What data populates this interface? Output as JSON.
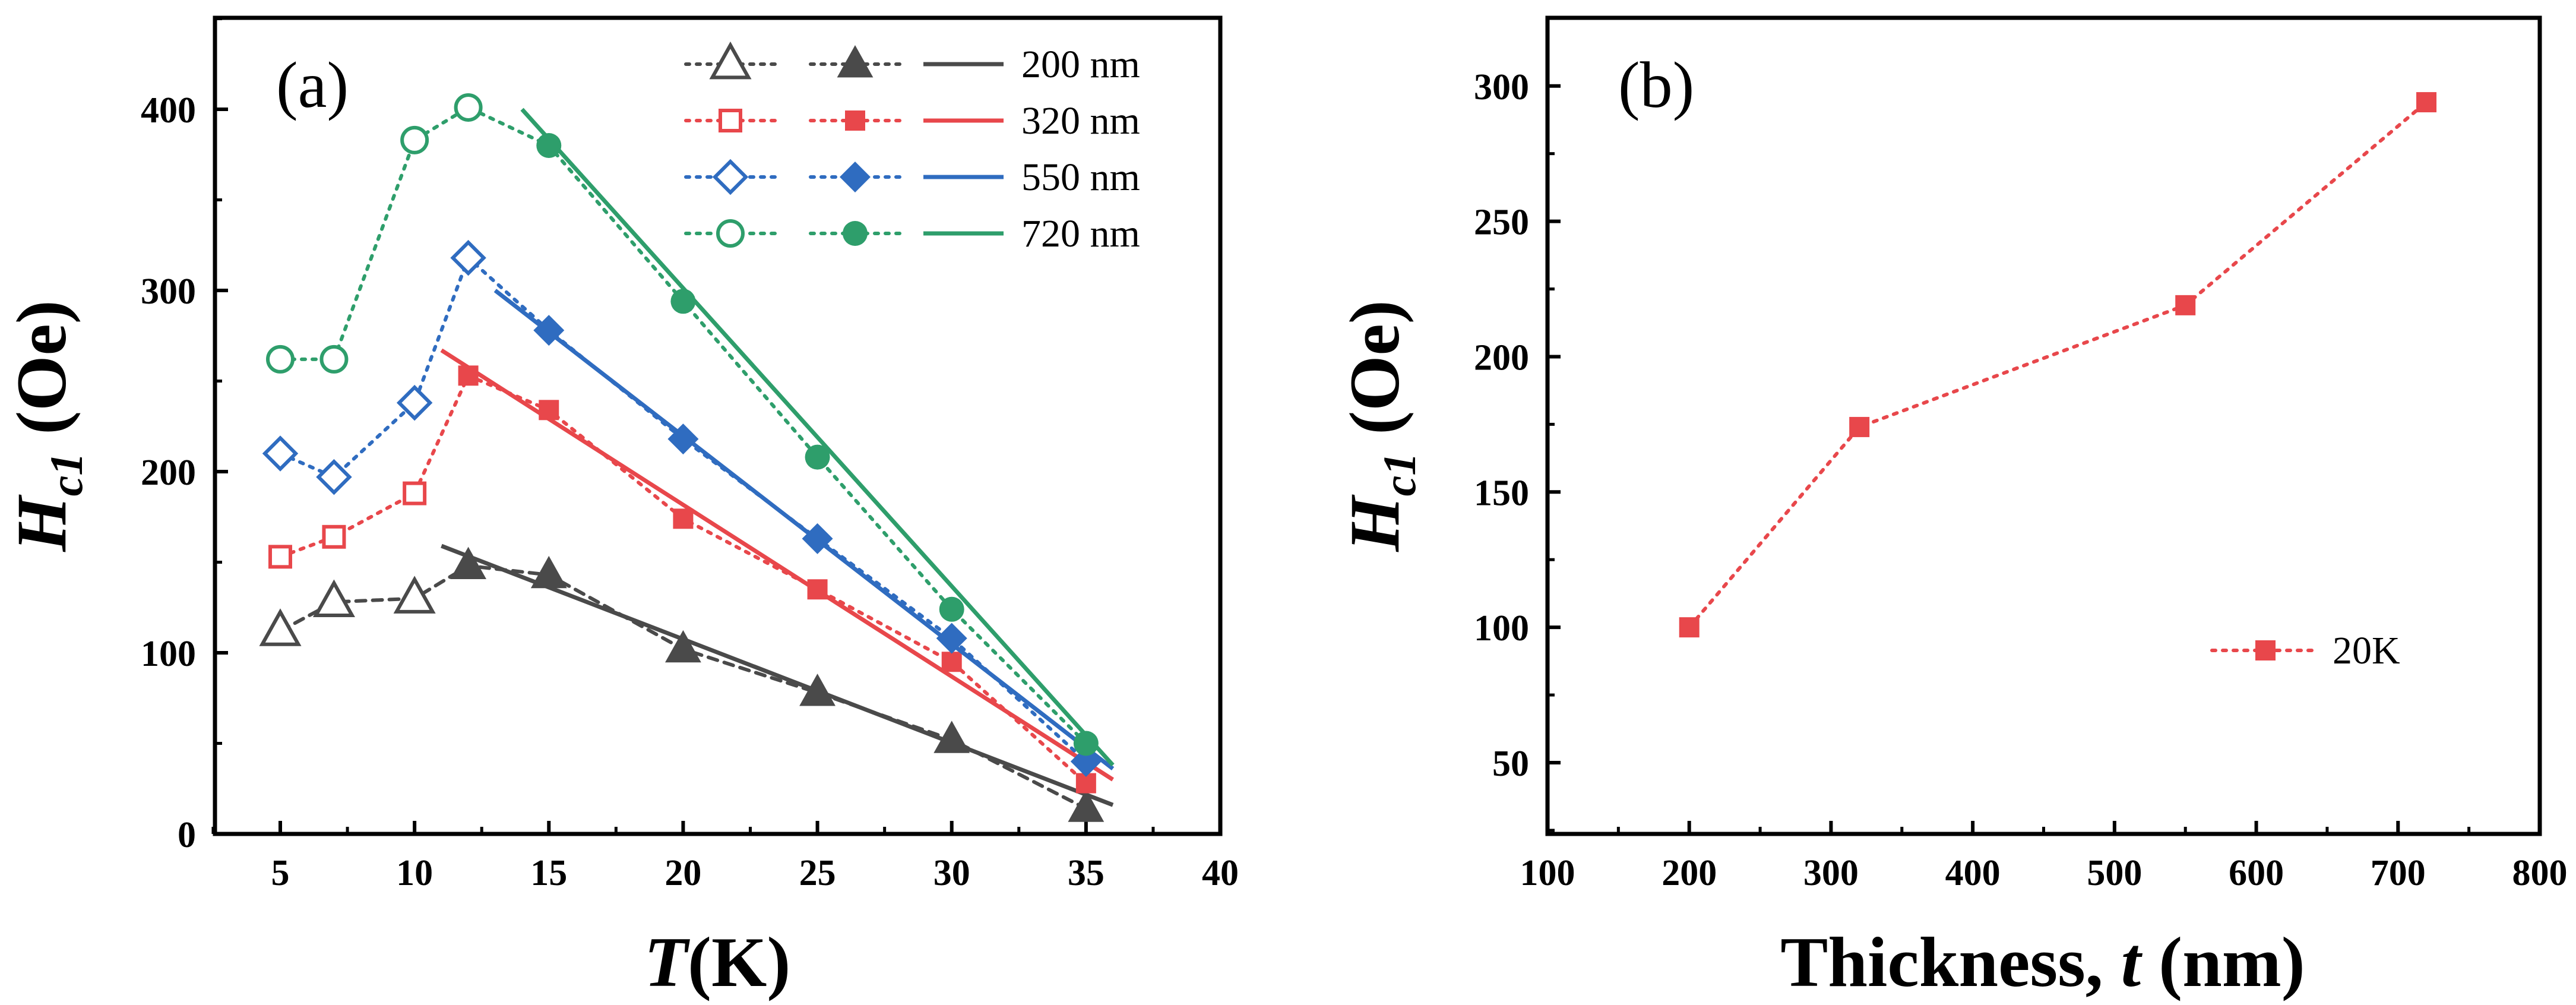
{
  "chart_data": [
    {
      "type": "line",
      "panel_label": "(a)",
      "xlabel_italic": "T",
      "xlabel_rest": "(K)",
      "ylabel_main": "H",
      "ylabel_sub": "c1",
      "ylabel_unit": "(Oe)",
      "xlim": [
        2,
        40
      ],
      "ylim": [
        0,
        430
      ],
      "xticks": [
        5,
        10,
        15,
        20,
        25,
        30,
        35,
        40
      ],
      "yticks": [
        0,
        100,
        200,
        300,
        400
      ],
      "grid": false,
      "legend_position": "top-right",
      "series": [
        {
          "name": "200 nm",
          "color": "#4a4a4a",
          "open": {
            "x": [
              5,
              7,
              10,
              12,
              15,
              20,
              25,
              30,
              35
            ],
            "y": [
              112,
              128,
              130,
              148,
              143,
              102,
              78,
              52,
              14
            ],
            "marker": "triangle"
          },
          "filled": {
            "x": [
              12,
              15,
              20,
              25,
              30,
              35
            ],
            "y": [
              148,
              143,
              102,
              78,
              52,
              14
            ],
            "marker": "triangle"
          },
          "fit": {
            "x": [
              11,
              36
            ],
            "y": [
              159,
              16
            ]
          }
        },
        {
          "name": "320 nm",
          "color": "#e8474b",
          "open": {
            "x": [
              5,
              7,
              10,
              12,
              15,
              20,
              25,
              30,
              35
            ],
            "y": [
              153,
              164,
              188,
              253,
              234,
              174,
              135,
              95,
              28
            ],
            "marker": "square"
          },
          "filled": {
            "x": [
              12,
              15,
              20,
              25,
              30,
              35
            ],
            "y": [
              253,
              234,
              174,
              135,
              95,
              28
            ],
            "marker": "square"
          },
          "fit": {
            "x": [
              11,
              36
            ],
            "y": [
              267,
              30
            ]
          }
        },
        {
          "name": "550 nm",
          "color": "#2f6cc0",
          "open": {
            "x": [
              5,
              7,
              10,
              12,
              15,
              20,
              25,
              30,
              35
            ],
            "y": [
              210,
              197,
              238,
              318,
              278,
              218,
              163,
              108,
              40
            ],
            "marker": "diamond"
          },
          "filled": {
            "x": [
              15,
              20,
              25,
              30,
              35
            ],
            "y": [
              278,
              218,
              163,
              108,
              40
            ],
            "marker": "diamond"
          },
          "fit": {
            "x": [
              13,
              36
            ],
            "y": [
              300,
              36
            ]
          }
        },
        {
          "name": "720 nm",
          "color": "#2e9e6b",
          "open": {
            "x": [
              5,
              7,
              10,
              12,
              15,
              20,
              25,
              30,
              35
            ],
            "y": [
              262,
              262,
              383,
              401,
              380,
              294,
              208,
              124,
              50
            ],
            "marker": "circle"
          },
          "filled": {
            "x": [
              15,
              20,
              25,
              30,
              35
            ],
            "y": [
              380,
              294,
              208,
              124,
              50
            ],
            "marker": "circle"
          },
          "fit": {
            "x": [
              14,
              36
            ],
            "y": [
              400,
              38
            ]
          }
        }
      ]
    },
    {
      "type": "line",
      "panel_label": "(b)",
      "xlabel_main": "Thickness, ",
      "xlabel_italic": "t",
      "xlabel_rest": " (nm)",
      "ylabel_main": "H",
      "ylabel_sub": "c1",
      "ylabel_unit": "(Oe)",
      "xlim": [
        100,
        800
      ],
      "ylim": [
        25,
        325
      ],
      "xticks": [
        100,
        200,
        300,
        400,
        500,
        600,
        700,
        800
      ],
      "yticks": [
        50,
        100,
        150,
        200,
        250,
        300
      ],
      "grid": false,
      "legend_position": "lower-right",
      "series": [
        {
          "name": "20K",
          "color": "#e8474b",
          "marker": "square",
          "x": [
            200,
            320,
            550,
            720
          ],
          "y": [
            100,
            174,
            219,
            294
          ]
        }
      ]
    }
  ]
}
